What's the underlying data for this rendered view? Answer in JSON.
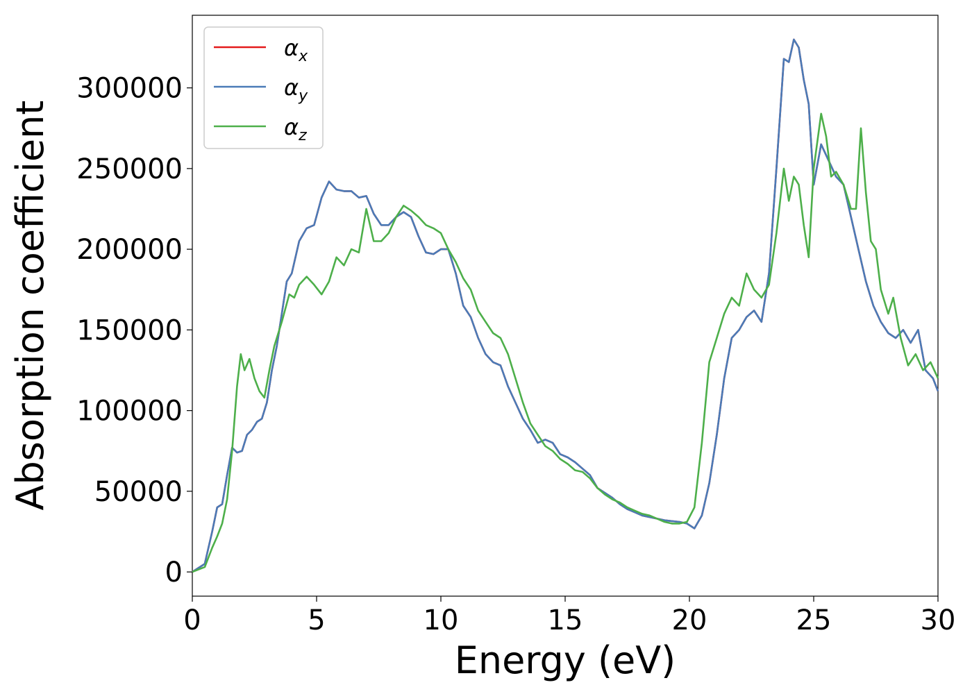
{
  "chart_data": {
    "type": "line",
    "xlabel": "Energy (eV)",
    "ylabel": "Absorption coefficient",
    "xlim": [
      0,
      30
    ],
    "ylim": [
      -15000,
      345000
    ],
    "grid": false,
    "legend_placement": "top-left",
    "x_ticks": [
      "0",
      "5",
      "10",
      "15",
      "20",
      "25",
      "30"
    ],
    "y_ticks": [
      "0",
      "50000",
      "100000",
      "150000",
      "200000",
      "250000",
      "300000"
    ],
    "series": [
      {
        "name": "α",
        "sub": "x",
        "color": "#e41a1c",
        "x": [
          0,
          0.5,
          0.8,
          1.0,
          1.2,
          1.4,
          1.6,
          1.8,
          2.0,
          2.2,
          2.4,
          2.6,
          2.8,
          3.0,
          3.2,
          3.4,
          3.6,
          3.8,
          4.0,
          4.3,
          4.6,
          4.9,
          5.2,
          5.5,
          5.8,
          6.1,
          6.4,
          6.7,
          7.0,
          7.3,
          7.6,
          7.9,
          8.2,
          8.5,
          8.8,
          9.1,
          9.4,
          9.7,
          10.0,
          10.3,
          10.6,
          10.9,
          11.2,
          11.5,
          11.8,
          12.1,
          12.4,
          12.7,
          13.0,
          13.3,
          13.6,
          13.9,
          14.2,
          14.5,
          14.8,
          15.1,
          15.4,
          15.7,
          16.0,
          16.3,
          16.6,
          16.9,
          17.2,
          17.5,
          17.8,
          18.1,
          18.4,
          18.7,
          19.0,
          19.3,
          19.6,
          19.9,
          20.2,
          20.5,
          20.8,
          21.1,
          21.4,
          21.7,
          22.0,
          22.3,
          22.6,
          22.9,
          23.2,
          23.5,
          23.8,
          24.0,
          24.2,
          24.4,
          24.6,
          24.8,
          25.0,
          25.3,
          25.6,
          25.9,
          26.2,
          26.5,
          26.8,
          27.1,
          27.4,
          27.7,
          28.0,
          28.3,
          28.6,
          28.9,
          29.2,
          29.5,
          29.8,
          30.0
        ],
        "y": [
          0,
          5000,
          25000,
          40000,
          42000,
          60000,
          77000,
          74000,
          75000,
          85000,
          88000,
          93000,
          95000,
          105000,
          125000,
          140000,
          160000,
          180000,
          185000,
          205000,
          213000,
          215000,
          232000,
          242000,
          237000,
          236000,
          236000,
          232000,
          233000,
          222000,
          215000,
          215000,
          220000,
          223000,
          220000,
          208000,
          198000,
          197000,
          200000,
          200000,
          185000,
          165000,
          158000,
          145000,
          135000,
          130000,
          128000,
          115000,
          105000,
          95000,
          88000,
          80000,
          82000,
          80000,
          73000,
          71000,
          68000,
          64000,
          60000,
          52000,
          49000,
          46000,
          42000,
          39000,
          37000,
          35000,
          34000,
          33000,
          32000,
          31500,
          31000,
          30000,
          27000,
          35000,
          55000,
          85000,
          120000,
          145000,
          150000,
          158000,
          162000,
          155000,
          185000,
          250000,
          318000,
          316000,
          330000,
          325000,
          305000,
          290000,
          240000,
          265000,
          255000,
          245000,
          240000,
          220000,
          200000,
          180000,
          165000,
          155000,
          148000,
          145000,
          150000,
          142000,
          150000,
          125000,
          120000,
          112000
        ]
      },
      {
        "name": "α",
        "sub": "y",
        "color": "#4a7bb7",
        "x": [
          0,
          0.5,
          0.8,
          1.0,
          1.2,
          1.4,
          1.6,
          1.8,
          2.0,
          2.2,
          2.4,
          2.6,
          2.8,
          3.0,
          3.2,
          3.4,
          3.6,
          3.8,
          4.0,
          4.3,
          4.6,
          4.9,
          5.2,
          5.5,
          5.8,
          6.1,
          6.4,
          6.7,
          7.0,
          7.3,
          7.6,
          7.9,
          8.2,
          8.5,
          8.8,
          9.1,
          9.4,
          9.7,
          10.0,
          10.3,
          10.6,
          10.9,
          11.2,
          11.5,
          11.8,
          12.1,
          12.4,
          12.7,
          13.0,
          13.3,
          13.6,
          13.9,
          14.2,
          14.5,
          14.8,
          15.1,
          15.4,
          15.7,
          16.0,
          16.3,
          16.6,
          16.9,
          17.2,
          17.5,
          17.8,
          18.1,
          18.4,
          18.7,
          19.0,
          19.3,
          19.6,
          19.9,
          20.2,
          20.5,
          20.8,
          21.1,
          21.4,
          21.7,
          22.0,
          22.3,
          22.6,
          22.9,
          23.2,
          23.5,
          23.8,
          24.0,
          24.2,
          24.4,
          24.6,
          24.8,
          25.0,
          25.3,
          25.6,
          25.9,
          26.2,
          26.5,
          26.8,
          27.1,
          27.4,
          27.7,
          28.0,
          28.3,
          28.6,
          28.9,
          29.2,
          29.5,
          29.8,
          30.0
        ],
        "y": [
          0,
          5000,
          25000,
          40000,
          42000,
          60000,
          77000,
          74000,
          75000,
          85000,
          88000,
          93000,
          95000,
          105000,
          125000,
          140000,
          160000,
          180000,
          185000,
          205000,
          213000,
          215000,
          232000,
          242000,
          237000,
          236000,
          236000,
          232000,
          233000,
          222000,
          215000,
          215000,
          220000,
          223000,
          220000,
          208000,
          198000,
          197000,
          200000,
          200000,
          185000,
          165000,
          158000,
          145000,
          135000,
          130000,
          128000,
          115000,
          105000,
          95000,
          88000,
          80000,
          82000,
          80000,
          73000,
          71000,
          68000,
          64000,
          60000,
          52000,
          49000,
          46000,
          42000,
          39000,
          37000,
          35000,
          34000,
          33000,
          32000,
          31500,
          31000,
          30000,
          27000,
          35000,
          55000,
          85000,
          120000,
          145000,
          150000,
          158000,
          162000,
          155000,
          185000,
          250000,
          318000,
          316000,
          330000,
          325000,
          305000,
          290000,
          240000,
          265000,
          255000,
          245000,
          240000,
          220000,
          200000,
          180000,
          165000,
          155000,
          148000,
          145000,
          150000,
          142000,
          150000,
          125000,
          120000,
          112000
        ]
      },
      {
        "name": "α",
        "sub": "z",
        "color": "#4daf4a",
        "x": [
          0,
          0.5,
          0.8,
          1.0,
          1.2,
          1.4,
          1.6,
          1.8,
          1.95,
          2.1,
          2.3,
          2.5,
          2.7,
          2.9,
          3.1,
          3.3,
          3.6,
          3.9,
          4.1,
          4.3,
          4.6,
          4.9,
          5.2,
          5.5,
          5.8,
          6.1,
          6.4,
          6.7,
          7.0,
          7.3,
          7.6,
          7.9,
          8.2,
          8.5,
          8.8,
          9.1,
          9.4,
          9.7,
          10.0,
          10.3,
          10.6,
          10.9,
          11.2,
          11.5,
          11.8,
          12.1,
          12.4,
          12.7,
          13.0,
          13.3,
          13.6,
          13.9,
          14.2,
          14.5,
          14.8,
          15.1,
          15.4,
          15.7,
          16.0,
          16.3,
          16.6,
          16.9,
          17.2,
          17.5,
          17.8,
          18.1,
          18.4,
          18.7,
          19.0,
          19.3,
          19.6,
          19.9,
          20.2,
          20.5,
          20.8,
          21.1,
          21.4,
          21.7,
          22.0,
          22.3,
          22.6,
          22.9,
          23.2,
          23.5,
          23.8,
          24.0,
          24.2,
          24.4,
          24.6,
          24.8,
          25.0,
          25.3,
          25.5,
          25.7,
          25.9,
          26.2,
          26.5,
          26.7,
          26.9,
          27.1,
          27.3,
          27.5,
          27.7,
          28.0,
          28.2,
          28.5,
          28.8,
          29.1,
          29.4,
          29.7,
          30.0
        ],
        "y": [
          0,
          3000,
          15000,
          22000,
          30000,
          45000,
          75000,
          115000,
          135000,
          125000,
          132000,
          120000,
          112000,
          108000,
          125000,
          140000,
          155000,
          172000,
          170000,
          178000,
          183000,
          178000,
          172000,
          180000,
          195000,
          190000,
          200000,
          198000,
          225000,
          205000,
          205000,
          210000,
          220000,
          227000,
          224000,
          220000,
          215000,
          213000,
          210000,
          200000,
          192000,
          182000,
          175000,
          162000,
          155000,
          148000,
          145000,
          135000,
          120000,
          105000,
          92000,
          85000,
          78000,
          75000,
          70000,
          67000,
          63000,
          62000,
          58000,
          52000,
          48000,
          45000,
          43000,
          40000,
          38000,
          36000,
          35000,
          33000,
          31000,
          30000,
          30000,
          31000,
          40000,
          80000,
          130000,
          145000,
          160000,
          170000,
          165000,
          185000,
          175000,
          170000,
          178000,
          210000,
          250000,
          230000,
          245000,
          240000,
          215000,
          195000,
          250000,
          284000,
          270000,
          245000,
          248000,
          240000,
          225000,
          225000,
          275000,
          235000,
          205000,
          200000,
          175000,
          160000,
          170000,
          145000,
          128000,
          135000,
          125000,
          130000,
          120000
        ]
      }
    ]
  }
}
